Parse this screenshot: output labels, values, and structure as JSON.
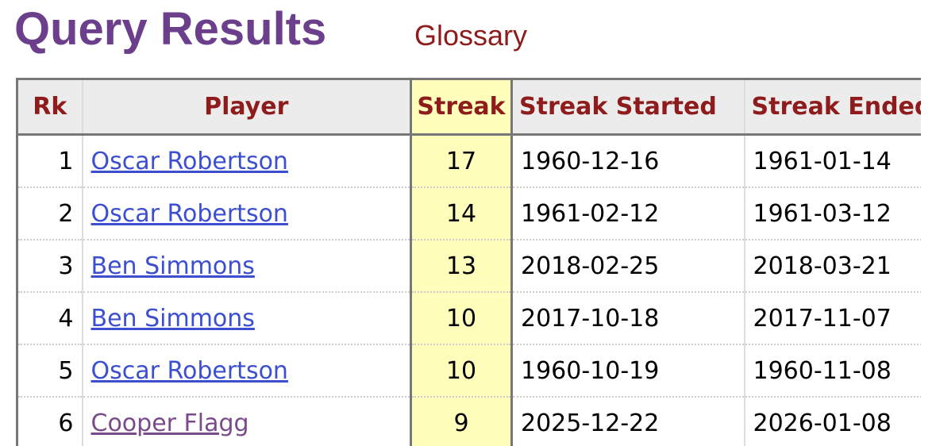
{
  "header": {
    "title": "Query Results",
    "glossary_label": "Glossary"
  },
  "table": {
    "columns": [
      "Rk",
      "Player",
      "Streak",
      "Streak Started",
      "Streak Ended"
    ],
    "rows": [
      {
        "rk": "1",
        "player": "Oscar Robertson",
        "streak": "17",
        "started": "1960-12-16",
        "ended": "1961-01-14",
        "visited": false
      },
      {
        "rk": "2",
        "player": "Oscar Robertson",
        "streak": "14",
        "started": "1961-02-12",
        "ended": "1961-03-12",
        "visited": false
      },
      {
        "rk": "3",
        "player": "Ben Simmons",
        "streak": "13",
        "started": "2018-02-25",
        "ended": "2018-03-21",
        "visited": false
      },
      {
        "rk": "4",
        "player": "Ben Simmons",
        "streak": "10",
        "started": "2017-10-18",
        "ended": "2017-11-07",
        "visited": false
      },
      {
        "rk": "5",
        "player": "Oscar Robertson",
        "streak": "10",
        "started": "1960-10-19",
        "ended": "1960-11-08",
        "visited": false
      },
      {
        "rk": "6",
        "player": "Cooper Flagg",
        "streak": "9",
        "started": "2025-12-22",
        "ended": "2026-01-08",
        "visited": true
      }
    ]
  },
  "colors": {
    "title": "#6b3f8c",
    "header_text": "#8f1c1c",
    "link": "#3b4fd0",
    "visited_link": "#7b4a8c",
    "sort_column_bg": "#ffffbb"
  }
}
